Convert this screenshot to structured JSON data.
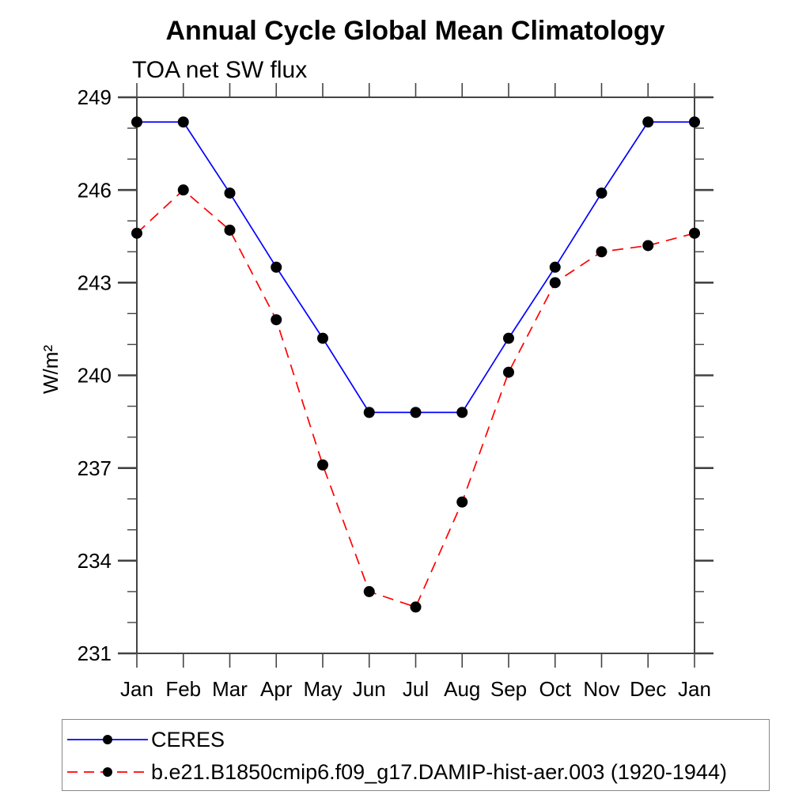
{
  "chart_data": {
    "type": "line",
    "title": "Annual Cycle Global Mean Climatology",
    "subtitle": "TOA net SW flux",
    "ylabel": "W/m²",
    "xlabel": "",
    "categories": [
      "Jan",
      "Feb",
      "Mar",
      "Apr",
      "May",
      "Jun",
      "Jul",
      "Aug",
      "Sep",
      "Oct",
      "Nov",
      "Dec",
      "Jan"
    ],
    "series": [
      {
        "name": "CERES",
        "color": "#0000ff",
        "line_style": "solid",
        "marker": "filled-circle",
        "marker_color": "#000000",
        "values": [
          248.2,
          248.2,
          245.9,
          243.5,
          241.2,
          238.8,
          238.8,
          238.8,
          241.2,
          243.5,
          245.9,
          248.2,
          248.2
        ]
      },
      {
        "name": "b.e21.B1850cmip6.f09_g17.DAMIP-hist-aer.003 (1920-1944)",
        "color": "#ff0000",
        "line_style": "dashed",
        "marker": "filled-circle",
        "marker_color": "#000000",
        "values": [
          244.6,
          246.0,
          244.7,
          241.8,
          237.1,
          233.0,
          232.5,
          235.9,
          240.1,
          243.0,
          244.0,
          244.2,
          244.6
        ]
      }
    ],
    "ylim": [
      231,
      249
    ],
    "yticks_major": [
      231,
      234,
      237,
      240,
      243,
      246,
      249
    ],
    "ytick_minor_step": 1,
    "grid": false,
    "legend_position": "bottom-box",
    "axis_color": "#444444",
    "text_color": "#000000"
  }
}
